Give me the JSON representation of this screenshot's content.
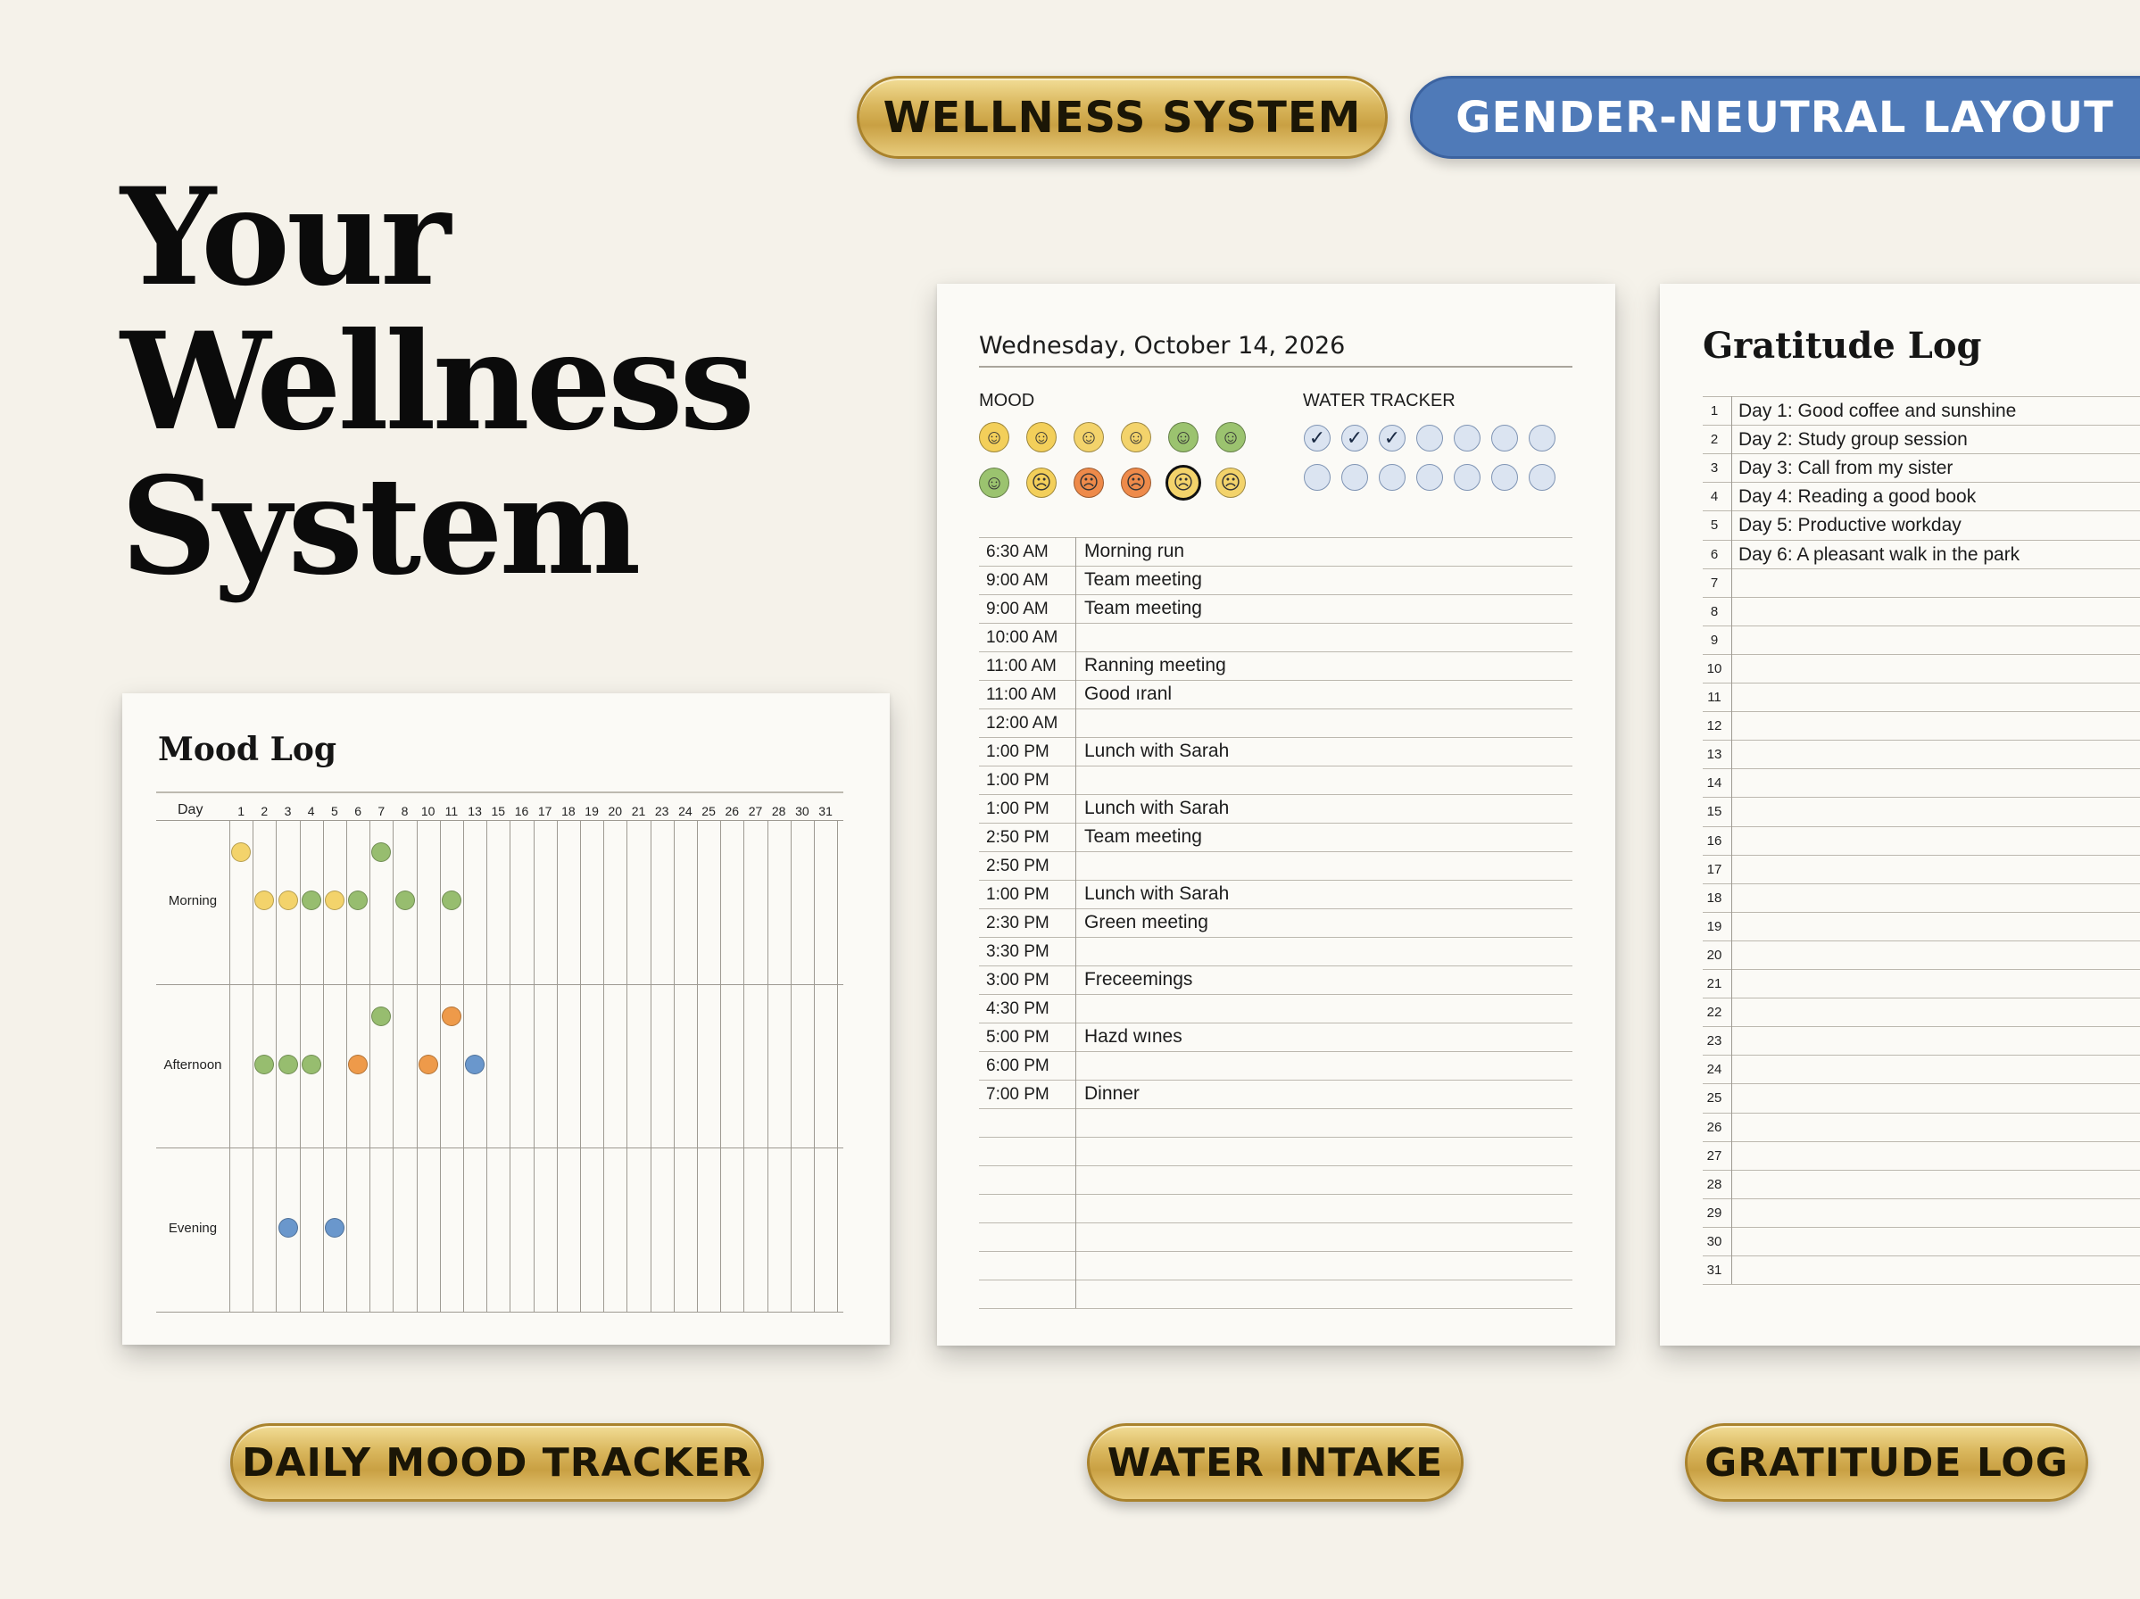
{
  "badges": {
    "wellness": "WELLNESS SYSTEM",
    "gender": "GENDER-NEUTRAL LAYOUT",
    "mood_tracker": "DAILY MOOD TRACKER",
    "water": "WATER INTAKE",
    "gratitude": "GRATITUDE LOG"
  },
  "hero": {
    "line1": "Your",
    "line2": "Wellness",
    "line3": "System"
  },
  "mood_log": {
    "title": "Mood Log",
    "day_label": "Day",
    "days": [
      "1",
      "2",
      "3",
      "4",
      "5",
      "6",
      "7",
      "8",
      "10",
      "11",
      "13",
      "15",
      "16",
      "17",
      "18",
      "19",
      "20",
      "21",
      "23",
      "24",
      "25",
      "26",
      "27",
      "28",
      "30",
      "31"
    ],
    "rows": [
      "Morning",
      "Afternoon",
      "Evening"
    ],
    "dots": [
      {
        "row": "Morning",
        "col": 0,
        "level": "upper",
        "color": "yellow"
      },
      {
        "row": "Morning",
        "col": 6,
        "level": "upper",
        "color": "green"
      },
      {
        "row": "Morning",
        "col": 1,
        "level": "mid",
        "color": "yellow"
      },
      {
        "row": "Morning",
        "col": 2,
        "level": "mid",
        "color": "yellow"
      },
      {
        "row": "Morning",
        "col": 3,
        "level": "mid",
        "color": "green"
      },
      {
        "row": "Morning",
        "col": 4,
        "level": "mid",
        "color": "yellow"
      },
      {
        "row": "Morning",
        "col": 5,
        "level": "mid",
        "color": "green"
      },
      {
        "row": "Morning",
        "col": 7,
        "level": "mid",
        "color": "green"
      },
      {
        "row": "Morning",
        "col": 9,
        "level": "mid",
        "color": "green"
      },
      {
        "row": "Afternoon",
        "col": 6,
        "level": "upper",
        "color": "green"
      },
      {
        "row": "Afternoon",
        "col": 9,
        "level": "upper",
        "color": "orange"
      },
      {
        "row": "Afternoon",
        "col": 1,
        "level": "mid",
        "color": "green"
      },
      {
        "row": "Afternoon",
        "col": 2,
        "level": "mid",
        "color": "green"
      },
      {
        "row": "Afternoon",
        "col": 3,
        "level": "mid",
        "color": "green"
      },
      {
        "row": "Afternoon",
        "col": 5,
        "level": "mid",
        "color": "orange"
      },
      {
        "row": "Afternoon",
        "col": 8,
        "level": "mid",
        "color": "orange"
      },
      {
        "row": "Afternoon",
        "col": 10,
        "level": "mid",
        "color": "blue"
      },
      {
        "row": "Evening",
        "col": 2,
        "level": "mid",
        "color": "blue"
      },
      {
        "row": "Evening",
        "col": 4,
        "level": "mid",
        "color": "blue"
      }
    ],
    "colors": {
      "yellow": "#f3d36b",
      "green": "#97bd6f",
      "orange": "#ee9a4a",
      "blue": "#6a97cc"
    }
  },
  "daily": {
    "date": "Wednesday, October 14, 2026",
    "mood_label": "MOOD",
    "water_label": "WATER TRACKER",
    "water_checked": 3,
    "water_total": 14,
    "schedule": [
      {
        "time": "6:30 AM",
        "task": "Morning run"
      },
      {
        "time": "9:00 AM",
        "task": "Team meeting"
      },
      {
        "time": "9:00 AM",
        "task": "Team meeting"
      },
      {
        "time": "10:00 AM",
        "task": ""
      },
      {
        "time": "11:00 AM",
        "task": "Ranning meeting"
      },
      {
        "time": "11:00 AM",
        "task": "Good ıranl"
      },
      {
        "time": "12:00 AM",
        "task": ""
      },
      {
        "time": "1:00 PM",
        "task": "Lunch with Sarah"
      },
      {
        "time": "1:00 PM",
        "task": ""
      },
      {
        "time": "1:00 PM",
        "task": "Lunch with Sarah"
      },
      {
        "time": "2:50 PM",
        "task": "Team meeting"
      },
      {
        "time": "2:50 PM",
        "task": ""
      },
      {
        "time": "1:00 PM",
        "task": "Lunch with Sarah"
      },
      {
        "time": "2:30 PM",
        "task": "Green meeting"
      },
      {
        "time": "3:30 PM",
        "task": ""
      },
      {
        "time": "3:00 PM",
        "task": "Freceemings"
      },
      {
        "time": "4:30 PM",
        "task": ""
      },
      {
        "time": "5:00 PM",
        "task": "Hazd wınes"
      },
      {
        "time": "6:00 PM",
        "task": ""
      },
      {
        "time": "7:00 PM",
        "task": "Dinner"
      }
    ]
  },
  "gratitude": {
    "title": "Gratitude Log",
    "entries": [
      "Day 1: Good coffee and sunshine",
      "Day 2: Study group session",
      "Day 3: Call from my sister",
      "Day 4: Reading a good book",
      "Day 5: Productive workday",
      "Day 6: A pleasant walk in the park"
    ],
    "numbers": [
      "1",
      "2",
      "3",
      "4",
      "5",
      "6",
      "7",
      "8",
      "9",
      "10",
      "11",
      "12",
      "13",
      "14",
      "15",
      "16",
      "17",
      "18",
      "19",
      "20",
      "21",
      "22",
      "23",
      "24",
      "25",
      "26",
      "27",
      "28",
      "29",
      "30",
      "31"
    ]
  }
}
